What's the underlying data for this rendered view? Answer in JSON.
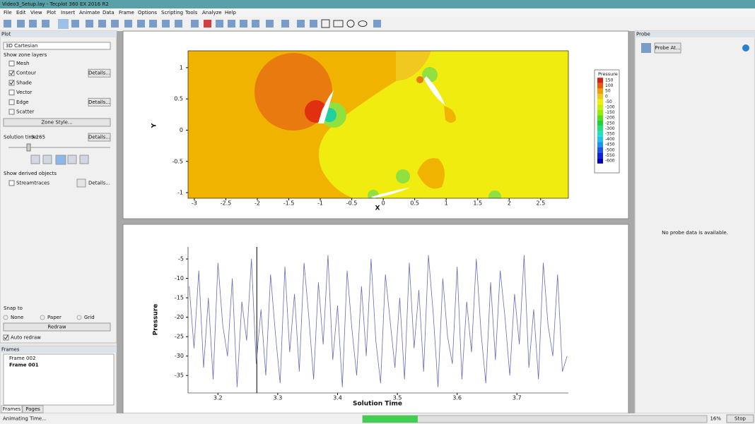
{
  "window": {
    "title": "Video3_Setup.lay - Tecplot 360 EX 2016 R2"
  },
  "menu": [
    "File",
    "Edit",
    "View",
    "Plot",
    "Insert",
    "Animate",
    "Data",
    "Frame",
    "Options",
    "Scripting",
    "Tools",
    "Analyze",
    "Help"
  ],
  "plot_panel": {
    "title": "Plot",
    "plot_type": "3D Cartesian",
    "zone_layers_label": "Show zone layers",
    "layers": [
      {
        "label": "Mesh",
        "checked": false
      },
      {
        "label": "Contour",
        "checked": true,
        "button": "Details..."
      },
      {
        "label": "Shade",
        "checked": true
      },
      {
        "label": "Vector",
        "checked": false
      },
      {
        "label": "Edge",
        "checked": false,
        "button": "Details..."
      },
      {
        "label": "Scatter",
        "checked": false
      }
    ],
    "zone_style": "Zone Style...",
    "solution_time_label": "Solution time:",
    "solution_time": 3.265,
    "solution_details": "Details...",
    "derived_label": "Show derived objects",
    "streamtraces": {
      "label": "Streamtraces",
      "checked": false,
      "button": "Details..."
    },
    "snap_label": "Snap to",
    "snap_options": [
      "None",
      "Paper",
      "Grid"
    ],
    "redraw": "Redraw",
    "auto_redraw": {
      "label": "Auto redraw",
      "checked": true
    }
  },
  "frames_panel": {
    "title": "Frames",
    "frames": [
      "Frame 002",
      "Frame 001"
    ],
    "tabs": [
      "Frames",
      "Pages"
    ]
  },
  "probe_panel": {
    "title": "Probe",
    "button": "Probe At...",
    "message": "No probe data is available."
  },
  "status": {
    "text": "Animating Time...",
    "progress": 16,
    "progress_label": "16%",
    "stop": "Stop"
  },
  "contour_plot": {
    "xlabel": "X",
    "ylabel": "Y",
    "xlim": [
      -3.1,
      2.94
    ],
    "ylim": [
      -1.09,
      1.27
    ],
    "xticks": [
      -3,
      -2.5,
      -2,
      -1.5,
      -1,
      -0.5,
      0,
      0.5,
      1,
      1.5,
      2,
      2.5
    ],
    "yticks": [
      -1,
      -0.5,
      0,
      0.5,
      1
    ],
    "legend": {
      "title": "Pressure",
      "levels": [
        150,
        100,
        50,
        0,
        -50,
        -100,
        -150,
        -200,
        -250,
        -300,
        -350,
        -400,
        -450,
        -500,
        -550,
        -600
      ],
      "colors": [
        "#d92010",
        "#e85a10",
        "#f0a000",
        "#f0c820",
        "#f0f000",
        "#c8f000",
        "#90f000",
        "#50e020",
        "#20d040",
        "#20e080",
        "#20e0c0",
        "#20c0f0",
        "#2090f0",
        "#2050f0",
        "#1020e0",
        "#0000c0"
      ]
    }
  },
  "line_plot": {
    "type": "line",
    "xlabel": "Solution Time",
    "ylabel": "Pressure",
    "xlim": [
      3.15,
      3.786
    ],
    "ylim": [
      -39.5,
      -1.9
    ],
    "xticks": [
      3.2,
      3.3,
      3.4,
      3.5,
      3.6,
      3.7
    ],
    "yticks": [
      -35,
      -30,
      -25,
      -20,
      -15,
      -10,
      -5
    ],
    "color": "#6a6ab8",
    "x": [
      3.152,
      3.16,
      3.168,
      3.176,
      3.184,
      3.192,
      3.2,
      3.208,
      3.216,
      3.224,
      3.232,
      3.24,
      3.248,
      3.256,
      3.264,
      3.272,
      3.28,
      3.288,
      3.296,
      3.304,
      3.312,
      3.32,
      3.328,
      3.336,
      3.344,
      3.352,
      3.36,
      3.368,
      3.376,
      3.384,
      3.392,
      3.4,
      3.408,
      3.416,
      3.424,
      3.432,
      3.44,
      3.448,
      3.456,
      3.464,
      3.472,
      3.48,
      3.488,
      3.496,
      3.504,
      3.512,
      3.52,
      3.528,
      3.536,
      3.544,
      3.552,
      3.56,
      3.568,
      3.576,
      3.584,
      3.592,
      3.6,
      3.608,
      3.616,
      3.624,
      3.632,
      3.64,
      3.648,
      3.656,
      3.664,
      3.672,
      3.68,
      3.688,
      3.696,
      3.704,
      3.712,
      3.72,
      3.728,
      3.736,
      3.744,
      3.752,
      3.76,
      3.768,
      3.776,
      3.784
    ],
    "values": [
      -12,
      -28,
      -8,
      -33,
      -15,
      -36,
      -6,
      -22,
      -30,
      -10,
      -38,
      -16,
      -26,
      -5,
      -32,
      -18,
      -35,
      -9,
      -24,
      -37,
      -7,
      -29,
      -14,
      -34,
      -6,
      -20,
      -36,
      -11,
      -27,
      -4,
      -31,
      -17,
      -38,
      -8,
      -23,
      -35,
      -12,
      -30,
      -5,
      -26,
      -37,
      -9,
      -21,
      -33,
      -15,
      -36,
      -6,
      -28,
      -13,
      -34,
      -4,
      -19,
      -38,
      -10,
      -25,
      -32,
      -7,
      -36,
      -16,
      -29,
      -5,
      -24,
      -37,
      -11,
      -31,
      -8,
      -20,
      -35,
      -14,
      -27,
      -4,
      -33,
      -18,
      -36,
      -6,
      -22,
      -30,
      -9,
      -34,
      -30
    ]
  }
}
